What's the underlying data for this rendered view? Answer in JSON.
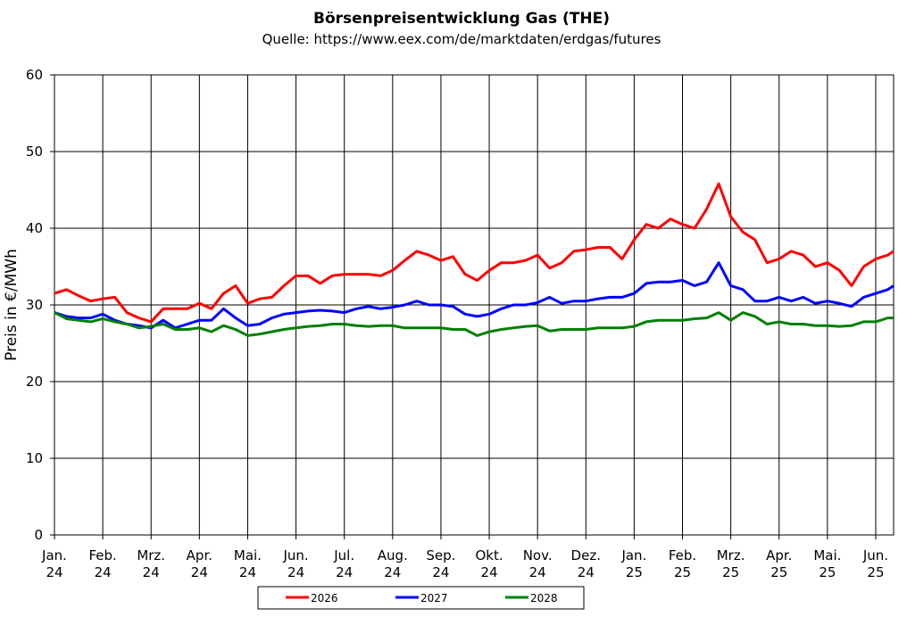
{
  "chart_data": {
    "type": "line",
    "title": "Börsenpreisentwicklung Gas (THE)",
    "subtitle": "Quelle: https://www.eex.com/de/marktdaten/erdgas/futures",
    "y_label": "Preis in €/MWh",
    "x": [
      0,
      0.25,
      0.5,
      0.75,
      1,
      1.25,
      1.5,
      1.75,
      2,
      2.25,
      2.5,
      2.75,
      3,
      3.25,
      3.5,
      3.75,
      4,
      4.25,
      4.5,
      4.75,
      5,
      5.25,
      5.5,
      5.75,
      6,
      6.25,
      6.5,
      6.75,
      7,
      7.25,
      7.5,
      7.75,
      8,
      8.25,
      8.5,
      8.75,
      9,
      9.25,
      9.5,
      9.75,
      10,
      10.25,
      10.5,
      10.75,
      11,
      11.25,
      11.5,
      11.75,
      12,
      12.25,
      12.5,
      12.75,
      13,
      13.25,
      13.5,
      13.75,
      14,
      14.25,
      14.5,
      14.75,
      15,
      15.25,
      15.5,
      15.75,
      16,
      16.25,
      16.5,
      16.75,
      17,
      17.25,
      17.37
    ],
    "series": [
      {
        "name": "2026",
        "color": "#ff0000",
        "values": [
          31.5,
          32,
          31.2,
          30.5,
          30.8,
          31,
          29,
          28.3,
          27.8,
          29.5,
          29.5,
          29.5,
          30.2,
          29.5,
          31.5,
          32.5,
          30.2,
          30.8,
          31,
          32.5,
          33.8,
          33.8,
          32.8,
          33.8,
          34,
          34,
          34,
          33.8,
          34.5,
          35.8,
          37,
          36.5,
          35.8,
          36.3,
          34,
          33.2,
          34.5,
          35.5,
          35.5,
          35.8,
          36.5,
          34.8,
          35.5,
          37,
          37.2,
          37.5,
          37.5,
          36,
          38.5,
          40.5,
          40,
          41.2,
          40.5,
          40,
          42.5,
          45.8,
          41.5,
          39.5,
          38.5,
          35.5,
          36,
          37,
          36.5,
          35,
          35.5,
          34.5,
          32.5,
          35,
          36,
          36.5,
          37
        ]
      },
      {
        "name": "2027",
        "color": "#0000ff",
        "values": [
          29,
          28.5,
          28.3,
          28.3,
          28.8,
          28,
          27.5,
          27.3,
          27,
          28,
          27,
          27.5,
          28,
          28,
          29.5,
          28.3,
          27.3,
          27.5,
          28.3,
          28.8,
          29,
          29.2,
          29.3,
          29.2,
          29,
          29.5,
          29.8,
          29.5,
          29.7,
          30,
          30.5,
          30,
          30,
          29.8,
          28.8,
          28.5,
          28.8,
          29.5,
          30,
          30,
          30.3,
          31,
          30.2,
          30.5,
          30.5,
          30.8,
          31,
          31,
          31.5,
          32.8,
          33,
          33,
          33.2,
          32.5,
          33,
          35.5,
          32.5,
          32,
          30.5,
          30.5,
          31,
          30.5,
          31,
          30.2,
          30.5,
          30.2,
          29.8,
          31,
          31.5,
          32,
          32.5
        ]
      },
      {
        "name": "2028",
        "color": "#008000",
        "values": [
          29,
          28.2,
          28,
          27.8,
          28.2,
          27.8,
          27.5,
          27,
          27.2,
          27.5,
          26.8,
          26.8,
          27,
          26.5,
          27.3,
          26.8,
          26,
          26.2,
          26.5,
          26.8,
          27,
          27.2,
          27.3,
          27.5,
          27.5,
          27.3,
          27.2,
          27.3,
          27.3,
          27,
          27,
          27,
          27,
          26.8,
          26.8,
          26,
          26.5,
          26.8,
          27,
          27.2,
          27.3,
          26.6,
          26.8,
          26.8,
          26.8,
          27,
          27,
          27,
          27.2,
          27.8,
          28,
          28,
          28,
          28.2,
          28.3,
          29,
          28,
          29,
          28.5,
          27.5,
          27.8,
          27.5,
          27.5,
          27.3,
          27.3,
          27.2,
          27.3,
          27.8,
          27.8,
          28.3,
          28.3
        ]
      }
    ],
    "xlim": [
      0,
      17.37
    ],
    "xticks": [
      {
        "value": 0,
        "label": "Jan.\n24"
      },
      {
        "value": 1,
        "label": "Feb.\n24"
      },
      {
        "value": 2,
        "label": "Mrz.\n24"
      },
      {
        "value": 3,
        "label": "Apr.\n24"
      },
      {
        "value": 4,
        "label": "Mai.\n24"
      },
      {
        "value": 5,
        "label": "Jun.\n24"
      },
      {
        "value": 6,
        "label": "Jul.\n24"
      },
      {
        "value": 7,
        "label": "Aug.\n24"
      },
      {
        "value": 8,
        "label": "Sep.\n24"
      },
      {
        "value": 9,
        "label": "Okt.\n24"
      },
      {
        "value": 10,
        "label": "Nov.\n24"
      },
      {
        "value": 11,
        "label": "Dez.\n24"
      },
      {
        "value": 12,
        "label": "Jan.\n25"
      },
      {
        "value": 13,
        "label": "Feb.\n25"
      },
      {
        "value": 14,
        "label": "Mrz.\n25"
      },
      {
        "value": 15,
        "label": "Apr.\n25"
      },
      {
        "value": 16,
        "label": "Mai.\n25"
      },
      {
        "value": 17,
        "label": "Jun.\n25"
      }
    ],
    "ylim": [
      0,
      60
    ],
    "yticks": [
      0,
      10,
      20,
      30,
      40,
      50,
      60
    ],
    "grid": true,
    "legend": "bottom"
  }
}
